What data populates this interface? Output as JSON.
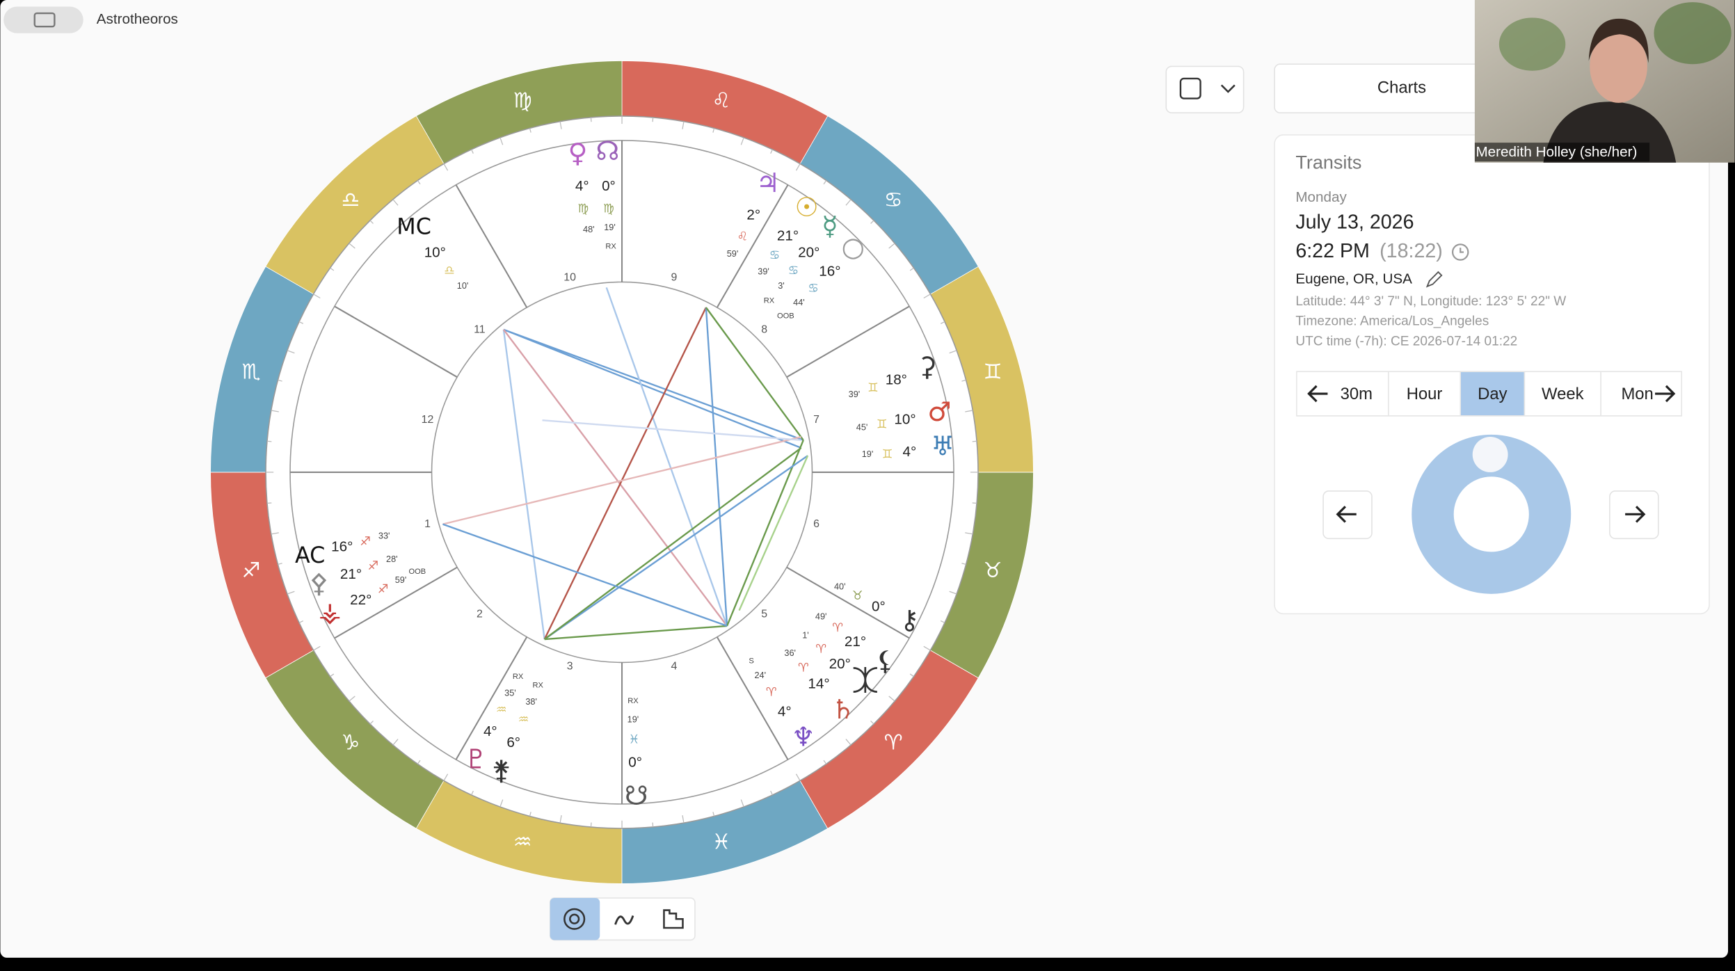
{
  "app": {
    "title": "Astrotheoros"
  },
  "wheel": {
    "signs": [
      "♐",
      "♑",
      "♒",
      "♓",
      "♈",
      "♉",
      "♊",
      "♋",
      "♌",
      "♍",
      "♎",
      "♏"
    ],
    "sign_colors": [
      "#d8695b",
      "#8f9f57",
      "#d9c262",
      "#6ea7c2",
      "#d8695b",
      "#8f9f57",
      "#d9c262",
      "#6ea7c2",
      "#d8695b",
      "#8f9f57",
      "#d9c262",
      "#6ea7c2"
    ],
    "houses": [
      "1",
      "2",
      "3",
      "4",
      "5",
      "6",
      "7",
      "8",
      "9",
      "10",
      "11",
      "12"
    ],
    "points": [
      {
        "glyph": "♀",
        "color": "#b65fc4",
        "degree": "4°",
        "sign": "♍",
        "minutes": "48'"
      },
      {
        "glyph": "☊",
        "color": "#9a62b8",
        "degree": "0°",
        "sign": "♍",
        "minutes": "19'",
        "flag": "RX"
      },
      {
        "glyph": "♃",
        "color": "#9c5fcf",
        "degree": "2°",
        "sign": "♌",
        "minutes": "59'"
      },
      {
        "glyph": "☉",
        "color": "#d6ad2e",
        "degree": "21°",
        "sign": "♋",
        "minutes": "39'"
      },
      {
        "glyph": "☿",
        "color": "#4d9b82",
        "degree": "20°",
        "sign": "♋",
        "minutes": "3'",
        "flag": "RX"
      },
      {
        "glyph": "○",
        "color": "#9a9a9a",
        "degree": "16°",
        "sign": "♋",
        "minutes": "44'",
        "flag": "OOB"
      },
      {
        "glyph": "⚳",
        "color": "#333333",
        "degree": "18°",
        "sign": "♊",
        "minutes": "39'"
      },
      {
        "glyph": "♂",
        "color": "#d04a3a",
        "degree": "10°",
        "sign": "♊",
        "minutes": "45'"
      },
      {
        "glyph": "♅",
        "color": "#3c7cb4",
        "degree": "4°",
        "sign": "♊",
        "minutes": "19'"
      },
      {
        "glyph": "⚷",
        "color": "#333333",
        "degree": "0°",
        "sign": "♉",
        "minutes": "40'"
      },
      {
        "glyph": "⚸",
        "color": "#333333",
        "degree": "21°",
        "sign": "♈",
        "minutes": "49'"
      },
      {
        "glyph": "⯰",
        "color": "#333333",
        "degree": "20°",
        "sign": "♈",
        "minutes": "1'"
      },
      {
        "glyph": "♄",
        "color": "#c25242",
        "degree": "14°",
        "sign": "♈",
        "minutes": "36'"
      },
      {
        "glyph": "♆",
        "color": "#7a4fc4",
        "degree": "4°",
        "sign": "♈",
        "minutes": "24'",
        "flag": "S"
      },
      {
        "glyph": "♇",
        "color": "#b04275",
        "degree": "4°",
        "sign": "♒",
        "minutes": "35'",
        "flag": "RX"
      },
      {
        "glyph": "⚵",
        "color": "#333333",
        "degree": "6°",
        "sign": "♒",
        "minutes": "38'",
        "flag": "RX"
      },
      {
        "glyph": "☋",
        "color": "#555555",
        "degree": "0°",
        "sign": "♓",
        "minutes": "19'",
        "flag": "RX"
      },
      {
        "glyph": "AC",
        "color": "#111111",
        "degree": "16°",
        "sign": "♐",
        "minutes": "33'"
      },
      {
        "glyph": "⚴",
        "color": "#888888",
        "degree": "21°",
        "sign": "♐",
        "minutes": "28'"
      },
      {
        "glyph": "⚶",
        "color": "#c23232",
        "degree": "22°",
        "sign": "♐",
        "minutes": "59'",
        "flag": "OOB"
      },
      {
        "glyph": "MC",
        "color": "#111111",
        "degree": "10°",
        "sign": "♎",
        "minutes": "10'"
      }
    ]
  },
  "toolbar": {
    "charts": "Charts"
  },
  "transits": {
    "title": "Transits",
    "weekday": "Monday",
    "date": "July 13, 2026",
    "time": "6:22 PM",
    "time_24h": "(18:22)",
    "location": "Eugene, OR, USA",
    "coordinates": "Latitude: 44° 3' 7\" N,  Longitude: 123° 5' 22\" W",
    "timezone": "Timezone: America/Los_Angeles",
    "utc": "UTC time (-7h): CE 2026-07-14 01:22",
    "steps": [
      "30m",
      "Hour",
      "Day",
      "Week",
      "Mon"
    ],
    "selected_step": "Day"
  },
  "video": {
    "name": "Meredith Holley (she/her)"
  }
}
